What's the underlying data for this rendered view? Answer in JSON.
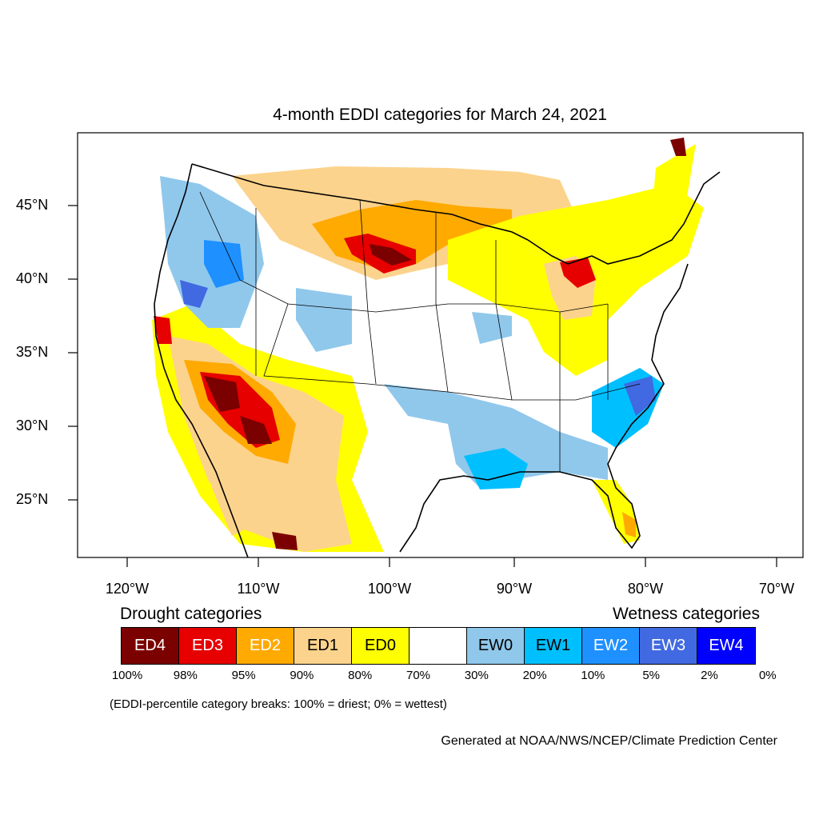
{
  "title": "4-month EDDI categories for March 24, 2021",
  "lat_labels": [
    "45°N",
    "40°N",
    "35°N",
    "30°N",
    "25°N"
  ],
  "lon_labels": [
    "120°W",
    "110°W",
    "100°W",
    "90°W",
    "80°W",
    "70°W"
  ],
  "legend": {
    "drought_heading": "Drought categories",
    "wetness_heading": "Wetness categories",
    "categories": [
      {
        "label": "ED4",
        "color": "#7b0000",
        "text_color": "#ffffff"
      },
      {
        "label": "ED3",
        "color": "#e60000",
        "text_color": "#ffffff"
      },
      {
        "label": "ED2",
        "color": "#ffaa00",
        "text_color": "#ffffff"
      },
      {
        "label": "ED1",
        "color": "#fcd38c",
        "text_color": "#000000"
      },
      {
        "label": "ED0",
        "color": "#ffff00",
        "text_color": "#000000"
      },
      {
        "label": "",
        "color": "#ffffff",
        "text_color": "#000000"
      },
      {
        "label": "EW0",
        "color": "#90c8ec",
        "text_color": "#000000"
      },
      {
        "label": "EW1",
        "color": "#00bfff",
        "text_color": "#000000"
      },
      {
        "label": "EW2",
        "color": "#1e90ff",
        "text_color": "#ffffff"
      },
      {
        "label": "EW3",
        "color": "#4169e1",
        "text_color": "#ffffff"
      },
      {
        "label": "EW4",
        "color": "#0000ff",
        "text_color": "#ffffff"
      }
    ],
    "breaks": [
      "100%",
      "98%",
      "95%",
      "90%",
      "80%",
      "70%",
      "30%",
      "20%",
      "10%",
      "5%",
      "2%",
      "0%"
    ]
  },
  "note": "(EDDI-percentile category breaks: 100% = driest; 0% = wettest)",
  "credit": "Generated at NOAA/NWS/NCEP/Climate Prediction Center"
}
